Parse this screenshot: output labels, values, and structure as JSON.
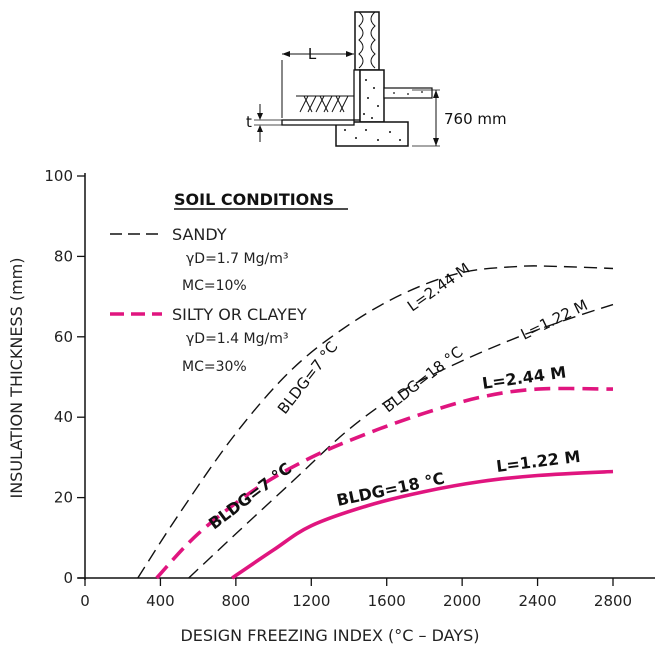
{
  "diagram": {
    "dim_L": "L",
    "dim_t": "t",
    "dim_depth": "760 mm"
  },
  "chart_data": {
    "type": "line",
    "xlabel": "DESIGN FREEZING INDEX (°C – DAYS)",
    "ylabel": "INSULATION THICKNESS (mm)",
    "xlim": [
      0,
      2800
    ],
    "ylim": [
      0,
      100
    ],
    "x_ticks": [
      0,
      400,
      800,
      1200,
      1600,
      2000,
      2400,
      2800
    ],
    "x_tick_labels": [
      "0",
      "400",
      "800",
      "1200",
      "1600",
      "2000",
      "2400",
      "2800"
    ],
    "y_ticks": [
      0,
      20,
      40,
      60,
      80,
      100
    ],
    "y_tick_labels": [
      "0",
      "20",
      "40",
      "60",
      "80",
      "100"
    ],
    "grid": false,
    "legend": {
      "title": "SOIL CONDITIONS",
      "entries": [
        {
          "label": "SANDY",
          "density": "γD=1.7  Mg/m³",
          "moisture": "MC=10%",
          "color": "#111111",
          "style": "dashed-thin"
        },
        {
          "label": "SILTY OR CLAYEY",
          "density": "γD=1.4  Mg/m³",
          "moisture": "MC=30%",
          "color": "#e0157f",
          "style": "dashed-thick"
        }
      ]
    },
    "series": [
      {
        "soil": "SANDY",
        "color": "#111111",
        "style": "dashed-thin",
        "x": [
          280,
          500,
          800,
          1100,
          1400,
          1700,
          2000,
          2300,
          2500,
          2800
        ],
        "y": [
          0,
          16,
          36,
          52,
          63,
          71,
          76,
          77.5,
          77.5,
          77
        ],
        "labels": [
          "BLDG=7 °C",
          "L=2.44 M"
        ]
      },
      {
        "soil": "SANDY",
        "color": "#111111",
        "style": "dashed-thin",
        "x": [
          550,
          800,
          1100,
          1400,
          1700,
          2000,
          2300,
          2600,
          2800
        ],
        "y": [
          0,
          11,
          24,
          37,
          47,
          54,
          60,
          65,
          68
        ],
        "labels": [
          "BLDG=18 °C",
          "L=1.22 M"
        ]
      },
      {
        "soil": "SILTY OR CLAYEY",
        "color": "#e0157f",
        "style": "dashed-thick",
        "x": [
          380,
          600,
          900,
          1200,
          1500,
          1800,
          2100,
          2400,
          2800
        ],
        "y": [
          0,
          11,
          22,
          30,
          36,
          41,
          45,
          47,
          47
        ],
        "labels": [
          "BLDG=7 °C",
          "L=2.44 M"
        ]
      },
      {
        "soil": "SILTY OR CLAYEY",
        "color": "#e0157f",
        "style": "solid-thick",
        "x": [
          780,
          1000,
          1200,
          1500,
          1800,
          2100,
          2400,
          2800
        ],
        "y": [
          0,
          7,
          13,
          18,
          21.5,
          24,
          25.5,
          26.5
        ],
        "labels": [
          "BLDG=18 °C",
          "L=1.22 M"
        ]
      }
    ]
  }
}
